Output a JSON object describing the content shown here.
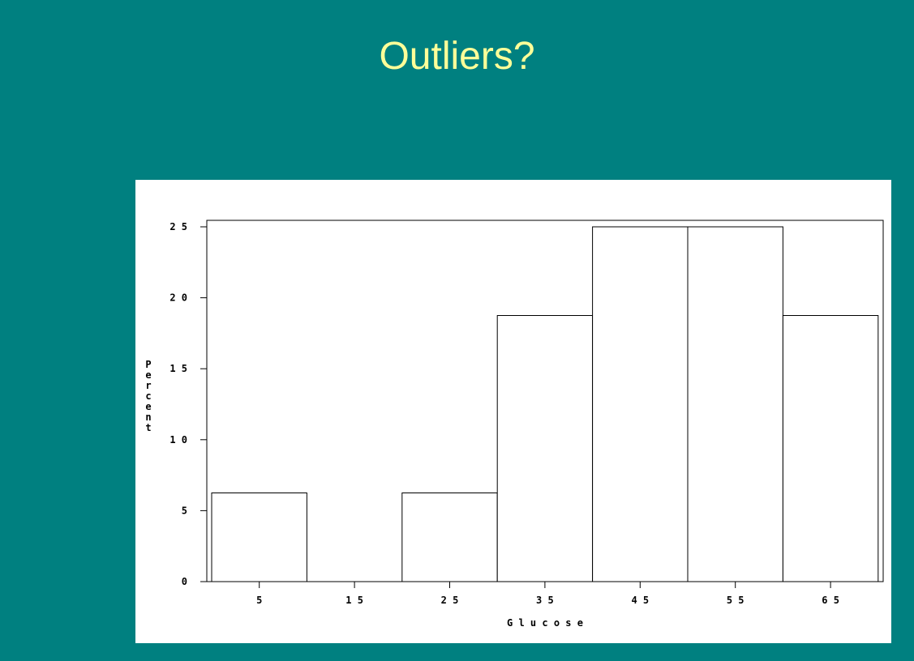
{
  "slide": {
    "title": "Outliers?"
  },
  "colors": {
    "background": "#008080",
    "title": "#ffff99",
    "panel": "#ffffff",
    "bar_fill": "#ffffff",
    "bar_stroke": "#000000"
  },
  "chart_data": {
    "type": "bar",
    "title": "",
    "xlabel": "Glucose",
    "ylabel": "Percent",
    "categories": [
      "5",
      "15",
      "25",
      "35",
      "45",
      "55",
      "65"
    ],
    "values": [
      6.25,
      0,
      6.25,
      18.75,
      25,
      25,
      18.75
    ],
    "ylim": [
      0,
      25
    ],
    "yticks": [
      0,
      5,
      10,
      15,
      20,
      25
    ],
    "grid": false,
    "legend": "none"
  }
}
